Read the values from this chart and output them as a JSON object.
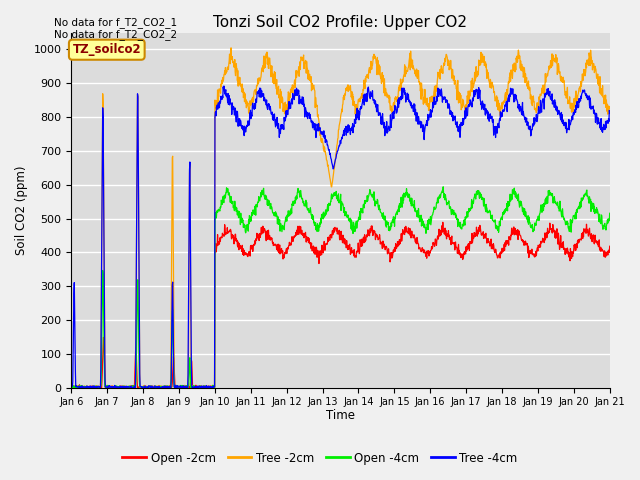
{
  "title": "Tonzi Soil CO2 Profile: Upper CO2",
  "xlabel": "Time",
  "ylabel": "Soil CO2 (ppm)",
  "ylim": [
    0,
    1050
  ],
  "yticks": [
    0,
    100,
    200,
    300,
    400,
    500,
    600,
    700,
    800,
    900,
    1000
  ],
  "xtick_labels": [
    "Jan 6",
    "Jan 7",
    "Jan 8",
    "Jan 9",
    "Jan 10",
    "Jan 11",
    "Jan 12",
    "Jan 13",
    "Jan 14",
    "Jan 15",
    "Jan 16",
    "Jan 17",
    "Jan 18",
    "Jan 19",
    "Jan 20",
    "Jan 21"
  ],
  "colors": {
    "red": "#ff0000",
    "orange": "#ffa500",
    "green": "#00ee00",
    "blue": "#0000ff"
  },
  "legend_labels": [
    "Open -2cm",
    "Tree -2cm",
    "Open -4cm",
    "Tree -4cm"
  ],
  "annotation_text": "TZ_soilco2",
  "no_data_text1": "No data for f_T2_CO2_1",
  "no_data_text2": "No data for f_T2_CO2_2",
  "bg_color": "#dcdcdc",
  "plot_bg_color": "#dcdcdc",
  "fig_width": 6.4,
  "fig_height": 4.8,
  "dpi": 100
}
